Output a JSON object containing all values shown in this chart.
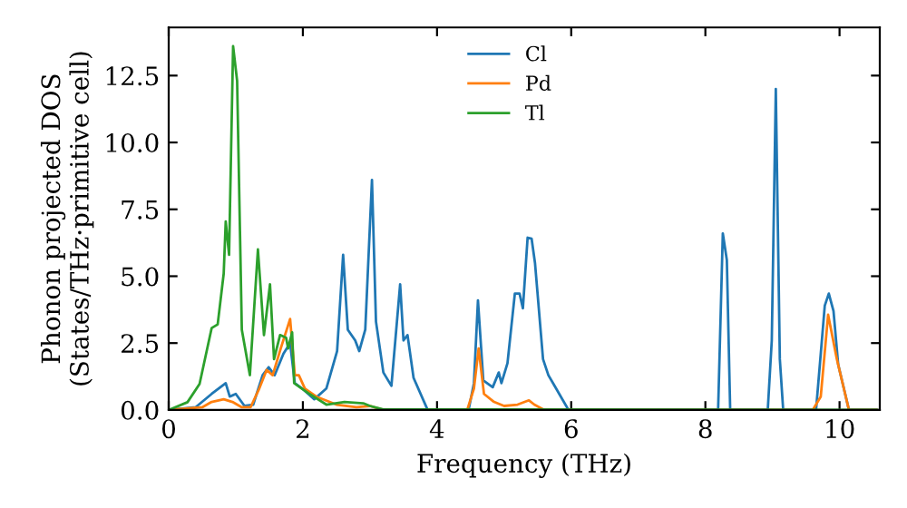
{
  "chart_data": {
    "type": "line",
    "xlabel": "Frequency (THz)",
    "ylabel": "Phonon projected DOS\n(States/THz·primitive cell)",
    "xlim": [
      0,
      10.6
    ],
    "ylim": [
      0,
      14.3
    ],
    "xticks": [
      0,
      2,
      4,
      6,
      8,
      10
    ],
    "yticks": [
      {
        "value": 0,
        "label": "0.0"
      },
      {
        "value": 2.5,
        "label": "2.5"
      },
      {
        "value": 5,
        "label": "5.0"
      },
      {
        "value": 7.5,
        "label": "7.5"
      },
      {
        "value": 10,
        "label": "10.0"
      },
      {
        "value": 12.5,
        "label": "12.5"
      }
    ],
    "legend": "top",
    "grid": false,
    "marker": "none",
    "line_style": "solid",
    "series": [
      {
        "name": "Cl",
        "color": "#1f77b4",
        "x": [
          0,
          0.4,
          0.64,
          0.85,
          0.91,
          1.0,
          1.13,
          1.26,
          1.4,
          1.49,
          1.58,
          1.71,
          1.81,
          1.88,
          1.99,
          2.17,
          2.35,
          2.51,
          2.6,
          2.67,
          2.78,
          2.84,
          2.93,
          3.03,
          3.09,
          3.2,
          3.32,
          3.45,
          3.5,
          3.56,
          3.65,
          3.86,
          4.47,
          4.55,
          4.61,
          4.69,
          4.83,
          4.92,
          4.96,
          5.05,
          5.16,
          5.23,
          5.28,
          5.35,
          5.41,
          5.46,
          5.58,
          5.66,
          5.73,
          5.96,
          8.19,
          8.26,
          8.32,
          8.37,
          8.93,
          8.99,
          9.05,
          9.11,
          9.16,
          9.65,
          9.78,
          9.84,
          9.91,
          9.98,
          10.14,
          10.55
        ],
        "values": [
          0,
          0.1,
          0.6,
          1.0,
          0.5,
          0.6,
          0.15,
          0.2,
          1.3,
          1.6,
          1.3,
          2.1,
          2.5,
          1.0,
          0.8,
          0.4,
          0.8,
          2.2,
          5.8,
          3.0,
          2.6,
          2.2,
          3.0,
          8.6,
          3.3,
          1.4,
          0.9,
          4.7,
          2.6,
          2.8,
          1.2,
          0,
          0,
          1.0,
          4.1,
          1.1,
          0.85,
          1.4,
          1.0,
          1.75,
          4.35,
          4.35,
          3.8,
          6.44,
          6.4,
          5.5,
          1.9,
          1.3,
          1.0,
          0,
          0,
          6.6,
          5.6,
          0,
          0,
          2.6,
          12.0,
          1.9,
          0,
          0,
          3.9,
          4.35,
          3.7,
          1.7,
          0,
          0
        ]
      },
      {
        "name": "Pd",
        "color": "#ff7f0e",
        "x": [
          0,
          0.5,
          0.64,
          0.82,
          0.95,
          1.09,
          1.22,
          1.35,
          1.46,
          1.55,
          1.67,
          1.81,
          1.88,
          1.94,
          2.03,
          2.2,
          2.5,
          2.8,
          3.0,
          3.2,
          4.45,
          4.55,
          4.62,
          4.7,
          4.85,
          5.0,
          5.2,
          5.37,
          5.45,
          5.6,
          9.6,
          9.72,
          9.83,
          9.96,
          10.14,
          10.55
        ],
        "values": [
          0,
          0.1,
          0.3,
          0.4,
          0.3,
          0.1,
          0.1,
          0.8,
          1.5,
          1.3,
          2.3,
          3.4,
          1.3,
          1.3,
          0.8,
          0.5,
          0.2,
          0.1,
          0.15,
          0,
          0,
          0.8,
          2.3,
          0.6,
          0.3,
          0.15,
          0.2,
          0.36,
          0.2,
          0,
          0,
          0.5,
          3.56,
          1.9,
          0,
          0
        ]
      },
      {
        "name": "Tl",
        "color": "#2ca02c",
        "x": [
          0,
          0.28,
          0.46,
          0.64,
          0.73,
          0.82,
          0.85,
          0.9,
          0.96,
          1.02,
          1.09,
          1.21,
          1.33,
          1.42,
          1.51,
          1.57,
          1.66,
          1.75,
          1.78,
          1.84,
          1.87,
          2.08,
          2.35,
          2.62,
          2.9,
          3.0,
          3.2,
          10.55
        ],
        "values": [
          0,
          0.29,
          0.97,
          3.06,
          3.2,
          5.1,
          7.05,
          5.8,
          13.6,
          12.3,
          3.0,
          1.3,
          6.0,
          2.8,
          4.7,
          1.9,
          2.8,
          2.7,
          2.3,
          2.9,
          1.0,
          0.63,
          0.2,
          0.3,
          0.25,
          0.15,
          0.02,
          0
        ]
      }
    ]
  }
}
